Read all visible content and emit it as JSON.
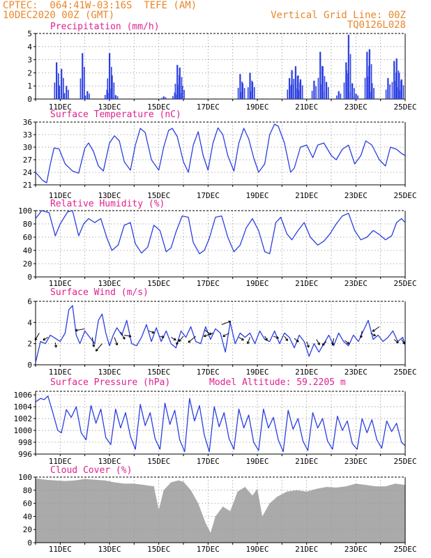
{
  "header": {
    "line1": "CPTEC:  064:41W-03:16S  TEFE (AM)",
    "line2": "10DEC2020 00Z (GMT)",
    "right1": "Vertical Grid Line: 00Z",
    "right2": "TQ0126L028"
  },
  "colors": {
    "line": "#2a3ee0",
    "bar": "#2a3ee0",
    "cloud": "#aaaaaa",
    "title": "#e0208f",
    "header": "#e8872a",
    "arrow": "#000000"
  },
  "x_axis": {
    "ticks": [
      "11DEC",
      "13DEC",
      "15DEC",
      "17DEC",
      "19DEC",
      "21DEC",
      "23DEC",
      "25DEC"
    ],
    "start_day": 10,
    "end_day": 25
  },
  "chart_data": [
    {
      "type": "bar",
      "title": "Precipitation (mm/h)",
      "ylim": [
        0,
        5
      ],
      "yticks": [
        0,
        1,
        2,
        3,
        4,
        5
      ],
      "events": [
        [
          10.85,
          2.8
        ],
        [
          11.05,
          2.3
        ],
        [
          11.25,
          1.0
        ],
        [
          11.9,
          3.5
        ],
        [
          12.1,
          0.6
        ],
        [
          12.9,
          0.7
        ],
        [
          13.0,
          3.5
        ],
        [
          13.1,
          1.8
        ],
        [
          13.25,
          0.3
        ],
        [
          15.2,
          0.2
        ],
        [
          15.65,
          0.5
        ],
        [
          15.75,
          2.6
        ],
        [
          15.85,
          2.4
        ],
        [
          15.95,
          1.0
        ],
        [
          18.3,
          1.9
        ],
        [
          18.4,
          1.2
        ],
        [
          18.7,
          2.0
        ],
        [
          18.8,
          1.3
        ],
        [
          20.3,
          1.6
        ],
        [
          20.4,
          2.2
        ],
        [
          20.55,
          2.5
        ],
        [
          20.65,
          1.8
        ],
        [
          20.75,
          1.5
        ],
        [
          21.3,
          1.4
        ],
        [
          21.55,
          3.6
        ],
        [
          21.65,
          2.5
        ],
        [
          21.8,
          1.3
        ],
        [
          22.3,
          0.6
        ],
        [
          22.6,
          2.8
        ],
        [
          22.7,
          4.9
        ],
        [
          22.85,
          1.2
        ],
        [
          23.0,
          0.4
        ],
        [
          23.45,
          3.6
        ],
        [
          23.55,
          3.8
        ],
        [
          23.65,
          1.2
        ],
        [
          24.3,
          1.6
        ],
        [
          24.55,
          2.9
        ],
        [
          24.65,
          3.1
        ],
        [
          24.75,
          2.0
        ],
        [
          24.85,
          1.5
        ]
      ]
    },
    {
      "type": "line",
      "title": "Surface Temperature (nC)",
      "ylim": [
        21,
        36
      ],
      "yticks": [
        21,
        24,
        27,
        30,
        33,
        36
      ],
      "x": [
        10.0,
        10.3,
        10.45,
        10.6,
        10.75,
        10.95,
        11.2,
        11.5,
        11.75,
        12.0,
        12.15,
        12.35,
        12.55,
        12.75,
        13.0,
        13.2,
        13.4,
        13.6,
        13.85,
        14.05,
        14.25,
        14.45,
        14.7,
        15.0,
        15.2,
        15.4,
        15.55,
        15.75,
        16.0,
        16.2,
        16.4,
        16.6,
        16.8,
        17.0,
        17.2,
        17.4,
        17.6,
        17.8,
        18.05,
        18.25,
        18.45,
        18.65,
        18.85,
        19.05,
        19.3,
        19.5,
        19.7,
        19.85,
        20.1,
        20.35,
        20.5,
        20.75,
        21.0,
        21.25,
        21.45,
        21.7,
        22.0,
        22.2,
        22.45,
        22.7,
        22.95,
        23.2,
        23.4,
        23.65,
        23.95,
        24.2,
        24.4,
        24.65,
        24.85,
        25.0
      ],
      "y": [
        24,
        22,
        21.5,
        26,
        29.8,
        29.6,
        26,
        24.3,
        23.8,
        29.8,
        31,
        29,
        25.5,
        24.3,
        31,
        32.7,
        31.5,
        26.5,
        24.5,
        30.5,
        34.5,
        33.5,
        27,
        24.5,
        30,
        34,
        34.5,
        32.5,
        26.5,
        24,
        30.5,
        33.7,
        28,
        24.5,
        31,
        34.6,
        33,
        28,
        24.3,
        31,
        34.5,
        32,
        27.5,
        24,
        26,
        33,
        35.5,
        35,
        31,
        24,
        25,
        30,
        30.5,
        27.5,
        30.5,
        31,
        28,
        27,
        29.5,
        30.5,
        26,
        28,
        31.5,
        30.5,
        27,
        25.5,
        30,
        29.5,
        28.5,
        28
      ]
    },
    {
      "type": "line",
      "title": "Relative Humidity (%)",
      "ylim": [
        0,
        100
      ],
      "yticks": [
        0,
        20,
        40,
        60,
        80,
        100
      ],
      "x": [
        10.0,
        10.25,
        10.55,
        10.8,
        11.0,
        11.3,
        11.5,
        11.75,
        11.95,
        12.15,
        12.4,
        12.65,
        12.9,
        13.1,
        13.35,
        13.6,
        13.85,
        14.05,
        14.3,
        14.55,
        14.8,
        15.05,
        15.3,
        15.5,
        15.7,
        15.95,
        16.2,
        16.4,
        16.65,
        16.85,
        17.05,
        17.3,
        17.55,
        17.8,
        18.05,
        18.3,
        18.55,
        18.8,
        19.05,
        19.3,
        19.5,
        19.75,
        19.95,
        20.2,
        20.4,
        20.65,
        20.9,
        21.15,
        21.45,
        21.7,
        21.95,
        22.2,
        22.45,
        22.7,
        22.95,
        23.2,
        23.45,
        23.7,
        23.95,
        24.2,
        24.45,
        24.65,
        24.85,
        25.0
      ],
      "y": [
        88,
        100,
        97,
        62,
        80,
        98,
        100,
        62,
        80,
        88,
        82,
        88,
        58,
        40,
        48,
        78,
        82,
        50,
        36,
        45,
        78,
        70,
        38,
        44,
        68,
        92,
        90,
        52,
        35,
        40,
        58,
        90,
        92,
        60,
        38,
        48,
        74,
        88,
        70,
        38,
        35,
        82,
        90,
        65,
        56,
        70,
        82,
        60,
        48,
        54,
        65,
        80,
        92,
        96,
        70,
        56,
        60,
        70,
        64,
        56,
        62,
        82,
        88,
        82
      ]
    },
    {
      "type": "line",
      "title": "Surface Wind (m/s)",
      "ylim": [
        0,
        6
      ],
      "yticks": [
        0,
        2,
        4,
        6
      ],
      "x": [
        10.0,
        10.2,
        10.4,
        10.6,
        10.8,
        11.0,
        11.2,
        11.35,
        11.5,
        11.65,
        11.8,
        12.0,
        12.2,
        12.4,
        12.55,
        12.7,
        12.85,
        13.0,
        13.15,
        13.3,
        13.5,
        13.7,
        13.9,
        14.1,
        14.3,
        14.5,
        14.7,
        14.9,
        15.1,
        15.3,
        15.5,
        15.7,
        15.9,
        16.1,
        16.3,
        16.5,
        16.7,
        16.9,
        17.1,
        17.3,
        17.5,
        17.7,
        17.9,
        18.1,
        18.3,
        18.5,
        18.7,
        18.9,
        19.1,
        19.3,
        19.5,
        19.7,
        19.9,
        20.1,
        20.3,
        20.5,
        20.7,
        20.9,
        21.1,
        21.3,
        21.5,
        21.7,
        21.9,
        22.1,
        22.3,
        22.5,
        22.7,
        22.9,
        23.1,
        23.3,
        23.5,
        23.7,
        23.9,
        24.1,
        24.3,
        24.5,
        24.7,
        24.9,
        25.0
      ],
      "y": [
        0.2,
        2.2,
        2.0,
        2.8,
        2.5,
        2.2,
        3.0,
        5.2,
        5.6,
        2.8,
        2.0,
        3.2,
        2.6,
        2.0,
        4.2,
        4.8,
        3.0,
        1.8,
        2.8,
        3.5,
        2.8,
        4.2,
        2.0,
        1.8,
        2.6,
        3.8,
        2.2,
        3.5,
        2.2,
        3.2,
        2.0,
        1.6,
        3.2,
        2.6,
        3.6,
        2.2,
        2.0,
        3.6,
        2.4,
        3.4,
        3.0,
        1.2,
        4.0,
        2.0,
        3.0,
        2.6,
        3.0,
        2.0,
        3.2,
        2.4,
        2.2,
        3.2,
        2.0,
        3.0,
        2.6,
        1.6,
        2.8,
        2.2,
        0.8,
        2.0,
        1.2,
        2.0,
        2.8,
        1.8,
        3.0,
        2.2,
        1.8,
        2.8,
        2.2,
        3.2,
        4.2,
        2.4,
        2.8,
        2.2,
        2.6,
        3.2,
        2.2,
        2.6,
        1.8
      ],
      "arrows": [
        [
          10.15,
          3.0,
          -120,
          12
        ],
        [
          10.5,
          2.6,
          -150,
          8
        ],
        [
          10.8,
          2.1,
          -80,
          7
        ],
        [
          12.0,
          3.4,
          -170,
          14
        ],
        [
          12.3,
          2.6,
          -80,
          14
        ],
        [
          12.7,
          2.0,
          -130,
          14
        ],
        [
          13.2,
          2.6,
          -70,
          12
        ],
        [
          13.45,
          3.1,
          -60,
          12
        ],
        [
          13.6,
          2.8,
          -10,
          10
        ],
        [
          14.6,
          3.2,
          -20,
          8
        ],
        [
          15.05,
          2.7,
          -15,
          6
        ],
        [
          15.5,
          2.6,
          -30,
          8
        ],
        [
          15.8,
          2.4,
          -110,
          8
        ],
        [
          16.0,
          2.7,
          -130,
          10
        ],
        [
          16.5,
          2.7,
          -140,
          14
        ],
        [
          16.85,
          3.3,
          -35,
          12
        ],
        [
          17.2,
          3.0,
          -160,
          14
        ],
        [
          17.55,
          3.8,
          20,
          14
        ],
        [
          17.85,
          3.0,
          -150,
          10
        ],
        [
          18.25,
          2.6,
          -30,
          8
        ],
        [
          18.7,
          2.6,
          -110,
          10
        ],
        [
          19.3,
          2.7,
          -60,
          7
        ],
        [
          19.65,
          2.7,
          -20,
          8
        ],
        [
          20.1,
          2.7,
          -55,
          8
        ],
        [
          20.5,
          2.5,
          -40,
          8
        ],
        [
          21.0,
          2.2,
          -70,
          9
        ],
        [
          21.4,
          2.4,
          -60,
          9
        ],
        [
          21.8,
          2.2,
          -135,
          8
        ],
        [
          22.1,
          2.5,
          -100,
          10
        ],
        [
          22.55,
          2.3,
          -40,
          8
        ],
        [
          23.25,
          3.2,
          -100,
          10
        ],
        [
          23.6,
          3.0,
          -30,
          8
        ],
        [
          23.95,
          3.6,
          -145,
          12
        ],
        [
          24.55,
          2.4,
          -40,
          8
        ],
        [
          24.85,
          2.4,
          -55,
          8
        ]
      ]
    },
    {
      "type": "line",
      "title": "Surface Pressure (hPa)",
      "annotation": "Model Altitude: 59.2205 m",
      "ylim": [
        996,
        1006.6
      ],
      "yticks": [
        996,
        998,
        1000,
        1002,
        1004,
        1006
      ],
      "x": [
        10.0,
        10.2,
        10.35,
        10.5,
        10.7,
        10.9,
        11.05,
        11.25,
        11.45,
        11.65,
        11.85,
        12.05,
        12.25,
        12.45,
        12.65,
        12.85,
        13.05,
        13.25,
        13.45,
        13.65,
        13.85,
        14.05,
        14.25,
        14.45,
        14.65,
        14.85,
        15.05,
        15.25,
        15.45,
        15.65,
        15.85,
        16.05,
        16.25,
        16.45,
        16.65,
        16.85,
        17.05,
        17.25,
        17.45,
        17.65,
        17.85,
        18.05,
        18.25,
        18.45,
        18.65,
        18.85,
        19.05,
        19.25,
        19.45,
        19.65,
        19.85,
        20.05,
        20.25,
        20.45,
        20.65,
        20.85,
        21.05,
        21.25,
        21.45,
        21.65,
        21.85,
        22.05,
        22.25,
        22.45,
        22.65,
        22.85,
        23.05,
        23.25,
        23.45,
        23.65,
        23.85,
        24.05,
        24.25,
        24.45,
        24.65,
        24.85,
        25.0
      ],
      "y": [
        1004.8,
        1005.4,
        1005.2,
        1005.8,
        1003,
        1000,
        999.6,
        1003.5,
        1002.2,
        1004,
        999.6,
        998.4,
        1004.2,
        1001.2,
        1003.6,
        998.8,
        997.6,
        1003.6,
        1000.4,
        1003,
        999,
        996.8,
        1004.4,
        1000.8,
        1003,
        998.6,
        996.8,
        1004.6,
        1001,
        1003.4,
        998.4,
        996.4,
        1005.4,
        1001.6,
        1004.2,
        999.2,
        996.4,
        1004,
        1000.6,
        1003,
        998.6,
        996.8,
        1003.6,
        1000.4,
        1002.6,
        998,
        996.6,
        1003.6,
        1000.4,
        1002.2,
        998.4,
        996.4,
        1003.4,
        1000.2,
        1002,
        998.2,
        996.6,
        1003,
        1000.4,
        1002,
        998.2,
        996.8,
        1002.4,
        1000,
        1001.6,
        997.8,
        996.8,
        1002,
        999.6,
        1001.8,
        998.4,
        997,
        1001.6,
        999.8,
        1001.2,
        998,
        997.4
      ]
    },
    {
      "type": "bar",
      "title": "Cloud Cover (%)",
      "ylim": [
        0,
        100
      ],
      "yticks": [
        0,
        20,
        40,
        60,
        80,
        100
      ],
      "x": [
        10.0,
        10.4,
        10.8,
        11.2,
        11.6,
        12.0,
        12.4,
        12.8,
        13.2,
        13.6,
        14.0,
        14.4,
        14.8,
        15.0,
        15.2,
        15.5,
        15.8,
        16.0,
        16.3,
        16.6,
        16.9,
        17.1,
        17.3,
        17.6,
        17.9,
        18.2,
        18.5,
        18.8,
        19.0,
        19.2,
        19.5,
        19.8,
        20.2,
        20.6,
        21.0,
        21.4,
        21.8,
        22.2,
        22.6,
        23.0,
        23.4,
        23.8,
        24.2,
        24.6,
        25.0
      ],
      "y": [
        98,
        96,
        95,
        94,
        95,
        97,
        96,
        95,
        92,
        90,
        90,
        88,
        86,
        50,
        80,
        92,
        95,
        93,
        80,
        60,
        30,
        15,
        40,
        55,
        48,
        78,
        85,
        72,
        82,
        40,
        60,
        70,
        78,
        80,
        78,
        82,
        85,
        84,
        86,
        90,
        88,
        86,
        86,
        90,
        88
      ]
    }
  ]
}
